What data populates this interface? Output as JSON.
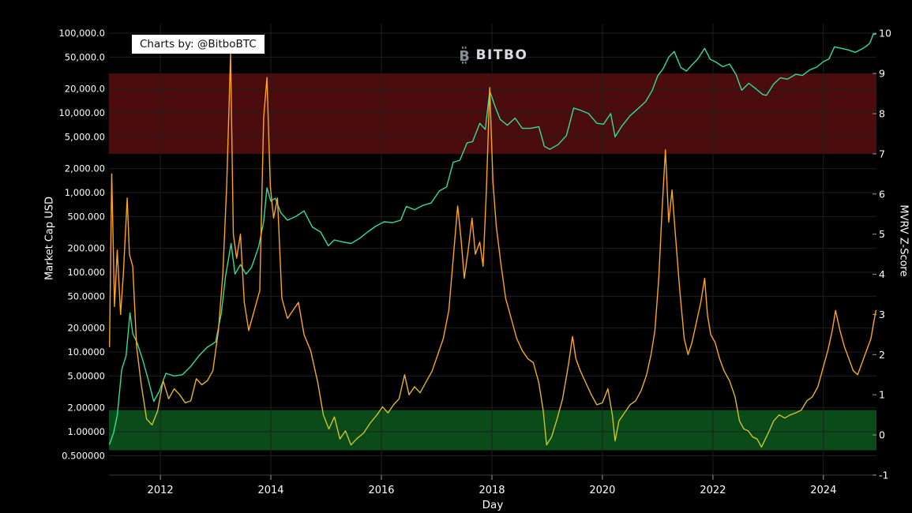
{
  "header": {
    "credit": "Charts by: @BitboBTC",
    "logo_text": "BITBO",
    "logo_icon": "B"
  },
  "colors": {
    "background": "#000000",
    "grid": "#1f1f1f",
    "axis_line": "#3c3c3c",
    "tick_mark": "#9a9a9a",
    "tick_text": "#ffffff",
    "credit_bg": "#ffffff",
    "price_line": "#30dd9b",
    "zscore_line": "#ffa41b",
    "overvalued_band": "#4b0c0e",
    "undervalued_band": "#0a4b19"
  },
  "chart_data": {
    "type": "line",
    "title": "",
    "xlabel": "Day",
    "x_axis": {
      "range": [
        2011.07,
        2024.96
      ],
      "tick_values": [
        2012,
        2014,
        2016,
        2018,
        2020,
        2022,
        2024
      ],
      "tick_labels": [
        "2012",
        "2014",
        "2016",
        "2018",
        "2020",
        "2022",
        "2024"
      ],
      "gridlines": [
        2012,
        2014,
        2016,
        2018,
        2020,
        2022,
        2024
      ]
    },
    "left_axis": {
      "label": "Market Cap USD",
      "scale": "log",
      "range": [
        0.2855,
        131500
      ],
      "tick_values": [
        100000,
        50000,
        20000,
        10000,
        5000,
        2000,
        1000,
        500,
        200,
        100,
        50,
        20,
        10,
        5,
        2,
        1,
        0.5
      ],
      "tick_labels": [
        "100,000.0",
        "50,000.0",
        "20,000.0",
        "10,000.00",
        "5,000.00",
        "2,000.00",
        "1,000.00",
        "500.000",
        "200.000",
        "100.000",
        "50.0000",
        "20.0000",
        "10.0000",
        "5.00000",
        "2.00000",
        "1.00000",
        "0.500000"
      ]
    },
    "right_axis": {
      "label": "MVRV Z-Score",
      "scale": "linear",
      "range": [
        -1.0,
        10.24
      ],
      "tick_values": [
        10,
        9,
        8,
        7,
        6,
        5,
        4,
        3,
        2,
        1,
        0,
        -1
      ],
      "tick_labels": [
        "10",
        "9",
        "8",
        "7",
        "6",
        "5",
        "4",
        "3",
        "2",
        "1",
        "0",
        "-1"
      ]
    },
    "bands": [
      {
        "name": "overvalued-zone",
        "axis": "right",
        "from": 7,
        "to": 9,
        "color": "#4b0c0e"
      },
      {
        "name": "undervalued-zone",
        "axis": "right",
        "from": -0.38,
        "to": 0.62,
        "color": "#0a4b19"
      }
    ],
    "series": [
      {
        "id": "market-cap-line",
        "name": "Market Cap USD",
        "axis": "left",
        "color": "#30dd9b",
        "x": [
          2011.08,
          2011.15,
          2011.22,
          2011.3,
          2011.38,
          2011.45,
          2011.5,
          2011.58,
          2011.68,
          2011.78,
          2011.88,
          2011.98,
          2012.1,
          2012.25,
          2012.4,
          2012.55,
          2012.7,
          2012.85,
          2013.0,
          2013.1,
          2013.18,
          2013.28,
          2013.35,
          2013.45,
          2013.55,
          2013.65,
          2013.78,
          2013.87,
          2013.93,
          2014.0,
          2014.08,
          2014.18,
          2014.3,
          2014.45,
          2014.6,
          2014.75,
          2014.9,
          2015.04,
          2015.15,
          2015.3,
          2015.45,
          2015.6,
          2015.75,
          2015.9,
          2016.05,
          2016.2,
          2016.35,
          2016.45,
          2016.6,
          2016.75,
          2016.9,
          2017.05,
          2017.18,
          2017.3,
          2017.42,
          2017.55,
          2017.65,
          2017.78,
          2017.88,
          2017.96,
          2018.05,
          2018.15,
          2018.28,
          2018.42,
          2018.55,
          2018.7,
          2018.85,
          2018.95,
          2019.05,
          2019.2,
          2019.35,
          2019.48,
          2019.6,
          2019.75,
          2019.9,
          2020.02,
          2020.15,
          2020.23,
          2020.35,
          2020.5,
          2020.65,
          2020.78,
          2020.9,
          2021.0,
          2021.1,
          2021.2,
          2021.3,
          2021.42,
          2021.52,
          2021.62,
          2021.72,
          2021.85,
          2021.95,
          2022.05,
          2022.18,
          2022.3,
          2022.42,
          2022.52,
          2022.65,
          2022.78,
          2022.9,
          2022.97,
          2023.1,
          2023.22,
          2023.35,
          2023.5,
          2023.62,
          2023.75,
          2023.88,
          2024.0,
          2024.1,
          2024.2,
          2024.32,
          2024.45,
          2024.58,
          2024.7,
          2024.78,
          2024.84,
          2024.9,
          2024.95
        ],
        "y": [
          0.7,
          0.95,
          1.6,
          6,
          9,
          31,
          17,
          13,
          8,
          4.5,
          2.4,
          3.2,
          5.4,
          5,
          5.2,
          6.6,
          9,
          11.5,
          13.4,
          30,
          90,
          230,
          95,
          125,
          95,
          115,
          210,
          430,
          1150,
          780,
          850,
          560,
          450,
          500,
          590,
          370,
          320,
          215,
          255,
          240,
          230,
          265,
          320,
          380,
          430,
          420,
          450,
          670,
          610,
          690,
          740,
          1050,
          1180,
          2400,
          2550,
          4200,
          4350,
          7400,
          6200,
          18900,
          12500,
          8300,
          7000,
          8600,
          6400,
          6400,
          6700,
          3800,
          3500,
          4000,
          5200,
          11500,
          10800,
          9800,
          7400,
          7200,
          9800,
          5000,
          6800,
          9200,
          11400,
          13800,
          19000,
          29000,
          36000,
          50000,
          58800,
          37000,
          33500,
          40000,
          47000,
          64400,
          47000,
          43500,
          38000,
          41000,
          30000,
          19200,
          23500,
          20000,
          17000,
          16600,
          23000,
          27500,
          26500,
          30500,
          29500,
          34500,
          37500,
          44000,
          47500,
          67500,
          64500,
          61500,
          57500,
          63500,
          69000,
          75000,
          96000,
          97500
        ]
      },
      {
        "id": "mvrv-zscore-line",
        "name": "MVRV Z-Score",
        "axis": "right",
        "color": "#ffa41b",
        "color_low": "#b9cf2e",
        "x": [
          2011.08,
          2011.12,
          2011.17,
          2011.22,
          2011.28,
          2011.33,
          2011.4,
          2011.44,
          2011.5,
          2011.57,
          2011.65,
          2011.75,
          2011.85,
          2011.95,
          2012.05,
          2012.15,
          2012.25,
          2012.35,
          2012.45,
          2012.55,
          2012.65,
          2012.75,
          2012.85,
          2012.95,
          2013.05,
          2013.13,
          2013.2,
          2013.27,
          2013.32,
          2013.38,
          2013.45,
          2013.52,
          2013.6,
          2013.7,
          2013.8,
          2013.87,
          2013.93,
          2013.99,
          2014.05,
          2014.12,
          2014.2,
          2014.3,
          2014.4,
          2014.5,
          2014.6,
          2014.72,
          2014.85,
          2014.95,
          2015.05,
          2015.15,
          2015.25,
          2015.35,
          2015.45,
          2015.55,
          2015.68,
          2015.8,
          2015.92,
          2016.02,
          2016.12,
          2016.22,
          2016.32,
          2016.42,
          2016.5,
          2016.6,
          2016.7,
          2016.82,
          2016.92,
          2017.02,
          2017.12,
          2017.22,
          2017.3,
          2017.38,
          2017.44,
          2017.5,
          2017.57,
          2017.64,
          2017.7,
          2017.78,
          2017.84,
          2017.9,
          2017.96,
          2018.02,
          2018.08,
          2018.16,
          2018.25,
          2018.35,
          2018.45,
          2018.55,
          2018.65,
          2018.75,
          2018.85,
          2018.93,
          2018.99,
          2019.08,
          2019.18,
          2019.28,
          2019.38,
          2019.46,
          2019.52,
          2019.6,
          2019.7,
          2019.8,
          2019.9,
          2020.0,
          2020.1,
          2020.18,
          2020.23,
          2020.3,
          2020.4,
          2020.5,
          2020.6,
          2020.7,
          2020.8,
          2020.88,
          2020.95,
          2021.02,
          2021.08,
          2021.14,
          2021.2,
          2021.26,
          2021.32,
          2021.4,
          2021.48,
          2021.55,
          2021.62,
          2021.7,
          2021.78,
          2021.85,
          2021.9,
          2021.96,
          2022.04,
          2022.12,
          2022.2,
          2022.3,
          2022.4,
          2022.48,
          2022.56,
          2022.64,
          2022.72,
          2022.8,
          2022.88,
          2022.95,
          2023.02,
          2023.1,
          2023.2,
          2023.3,
          2023.4,
          2023.5,
          2023.6,
          2023.7,
          2023.8,
          2023.9,
          2024.0,
          2024.08,
          2024.16,
          2024.22,
          2024.3,
          2024.38,
          2024.46,
          2024.54,
          2024.62,
          2024.7,
          2024.78,
          2024.86,
          2024.91,
          2024.95
        ],
        "y": [
          2.2,
          6.5,
          3.2,
          4.6,
          3.0,
          4.0,
          5.9,
          4.5,
          4.2,
          2.2,
          1.3,
          0.4,
          0.25,
          0.6,
          1.35,
          0.9,
          1.15,
          1.0,
          0.8,
          0.85,
          1.4,
          1.25,
          1.35,
          1.6,
          2.6,
          4.0,
          6.2,
          9.5,
          5.0,
          4.4,
          5.0,
          3.3,
          2.6,
          3.1,
          3.6,
          7.9,
          8.9,
          6.2,
          5.4,
          5.9,
          3.4,
          2.9,
          3.1,
          3.3,
          2.5,
          2.1,
          1.3,
          0.5,
          0.15,
          0.45,
          -0.1,
          0.1,
          -0.25,
          -0.1,
          0.05,
          0.3,
          0.5,
          0.7,
          0.55,
          0.75,
          0.9,
          1.5,
          1.0,
          1.2,
          1.05,
          1.35,
          1.6,
          2.0,
          2.4,
          3.1,
          4.4,
          5.7,
          4.9,
          3.9,
          4.6,
          5.4,
          4.5,
          4.8,
          4.2,
          6.1,
          8.65,
          6.3,
          5.2,
          4.3,
          3.4,
          2.9,
          2.4,
          2.1,
          1.9,
          1.8,
          1.3,
          0.6,
          -0.25,
          -0.05,
          0.4,
          0.9,
          1.7,
          2.45,
          1.9,
          1.6,
          1.3,
          1.0,
          0.75,
          0.8,
          1.15,
          0.5,
          -0.15,
          0.35,
          0.55,
          0.75,
          0.85,
          1.1,
          1.5,
          2.0,
          2.6,
          3.9,
          5.6,
          7.1,
          5.3,
          6.1,
          5.0,
          3.6,
          2.4,
          2.0,
          2.3,
          2.8,
          3.3,
          3.9,
          3.0,
          2.5,
          2.3,
          1.9,
          1.6,
          1.35,
          0.95,
          0.35,
          0.15,
          0.1,
          -0.05,
          -0.1,
          -0.3,
          -0.1,
          0.1,
          0.35,
          0.5,
          0.42,
          0.5,
          0.55,
          0.62,
          0.85,
          0.95,
          1.2,
          1.7,
          2.1,
          2.6,
          3.1,
          2.6,
          2.2,
          1.9,
          1.6,
          1.5,
          1.8,
          2.1,
          2.4,
          2.8,
          3.1
        ]
      }
    ]
  }
}
